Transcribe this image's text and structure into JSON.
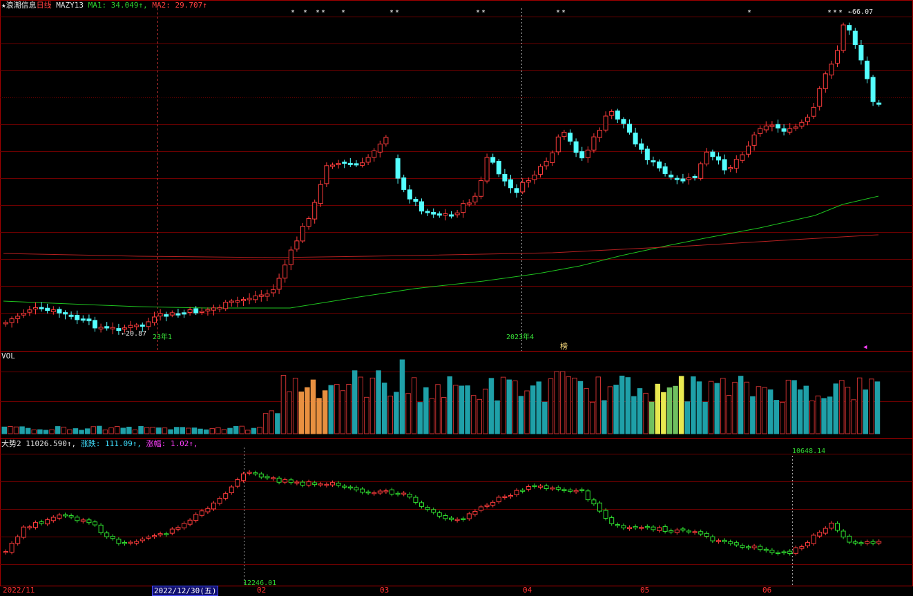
{
  "header": {
    "star": "★",
    "stock_name": "浪潮信息",
    "period": "日线",
    "indicator": "MAZY13",
    "ma1_label": "MA1:",
    "ma1_value": "34.049↑,",
    "ma2_label": "MA2:",
    "ma2_value": "29.707↑"
  },
  "price_panel": {
    "high_label": "66.07",
    "low_label": "←20.87",
    "year_tag_1": "23年1",
    "year_tag_2": "2023年4",
    "bang_label": "榜",
    "marker_glyph": "◀"
  },
  "vol_panel": {
    "title": "VOL"
  },
  "index_panel": {
    "name": "大势2",
    "value": "11026.590↑,",
    "change_label": "涨跌:",
    "change_value": "111.09↑,",
    "pct_label": "涨幅:",
    "pct_value": "1.02↑,",
    "high_label": "10648.14",
    "low_label": "12246.01"
  },
  "date_axis": {
    "labels": [
      "2022/11",
      "2022/12/30(五)",
      "02",
      "03",
      "04",
      "05",
      "06"
    ]
  },
  "colors": {
    "up": "#ff3c3c",
    "down": "#54ffff",
    "ma_green": "#1fc41f",
    "ma_red": "#b52020",
    "grid": "#6e0000",
    "index_down": "#30e030"
  }
}
